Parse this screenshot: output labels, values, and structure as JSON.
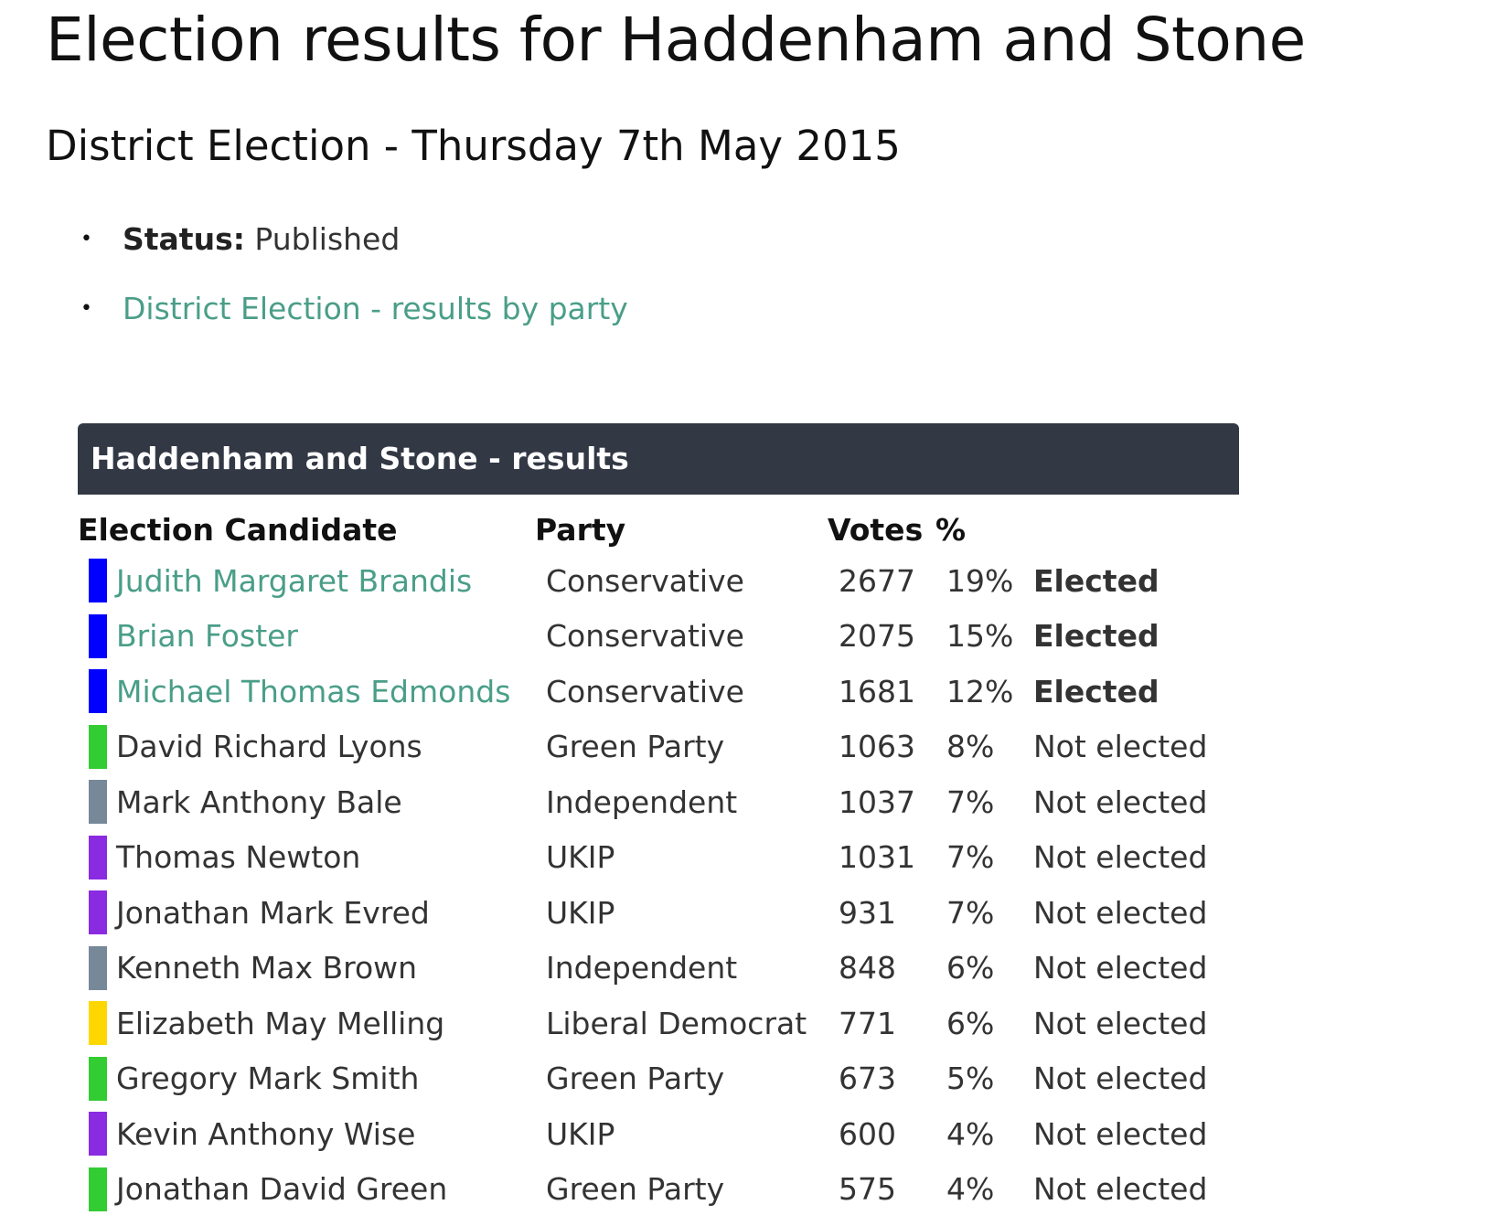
{
  "page": {
    "title": "Election results for Haddenham and Stone",
    "subtitle": "District Election - Thursday 7th May 2015"
  },
  "info": {
    "status_label": "Status:",
    "status_value": "Published",
    "party_link": "District Election - results by party"
  },
  "results": {
    "header": "Haddenham and Stone - results",
    "columns": {
      "candidate": "Election Candidate",
      "party": "Party",
      "votes": "Votes",
      "percent": "%"
    },
    "rows": [
      {
        "name": "Judith Margaret Brandis",
        "party": "Conservative",
        "votes": "2677",
        "percent": "19%",
        "status": "Elected",
        "color": "#0000ff",
        "linked": true,
        "elected": true
      },
      {
        "name": "Brian Foster",
        "party": "Conservative",
        "votes": "2075",
        "percent": "15%",
        "status": "Elected",
        "color": "#0000ff",
        "linked": true,
        "elected": true
      },
      {
        "name": "Michael Thomas Edmonds",
        "party": "Conservative",
        "votes": "1681",
        "percent": "12%",
        "status": "Elected",
        "color": "#0000ff",
        "linked": true,
        "elected": true
      },
      {
        "name": "David Richard Lyons",
        "party": "Green Party",
        "votes": "1063",
        "percent": "8%",
        "status": "Not elected",
        "color": "#33cc33",
        "linked": false,
        "elected": false
      },
      {
        "name": "Mark Anthony Bale",
        "party": "Independent",
        "votes": "1037",
        "percent": "7%",
        "status": "Not elected",
        "color": "#778899",
        "linked": false,
        "elected": false
      },
      {
        "name": "Thomas Newton",
        "party": "UKIP",
        "votes": "1031",
        "percent": "7%",
        "status": "Not elected",
        "color": "#8a2be2",
        "linked": false,
        "elected": false
      },
      {
        "name": "Jonathan Mark Evred",
        "party": "UKIP",
        "votes": "931",
        "percent": "7%",
        "status": "Not elected",
        "color": "#8a2be2",
        "linked": false,
        "elected": false
      },
      {
        "name": "Kenneth Max Brown",
        "party": "Independent",
        "votes": "848",
        "percent": "6%",
        "status": "Not elected",
        "color": "#778899",
        "linked": false,
        "elected": false
      },
      {
        "name": "Elizabeth May Melling",
        "party": "Liberal Democrat",
        "votes": "771",
        "percent": "6%",
        "status": "Not elected",
        "color": "#ffd700",
        "linked": false,
        "elected": false
      },
      {
        "name": "Gregory Mark Smith",
        "party": "Green Party",
        "votes": "673",
        "percent": "5%",
        "status": "Not elected",
        "color": "#33cc33",
        "linked": false,
        "elected": false
      },
      {
        "name": "Kevin Anthony Wise",
        "party": "UKIP",
        "votes": "600",
        "percent": "4%",
        "status": "Not elected",
        "color": "#8a2be2",
        "linked": false,
        "elected": false
      },
      {
        "name": "Jonathan David Green",
        "party": "Green Party",
        "votes": "575",
        "percent": "4%",
        "status": "Not elected",
        "color": "#33cc33",
        "linked": false,
        "elected": false
      }
    ]
  }
}
